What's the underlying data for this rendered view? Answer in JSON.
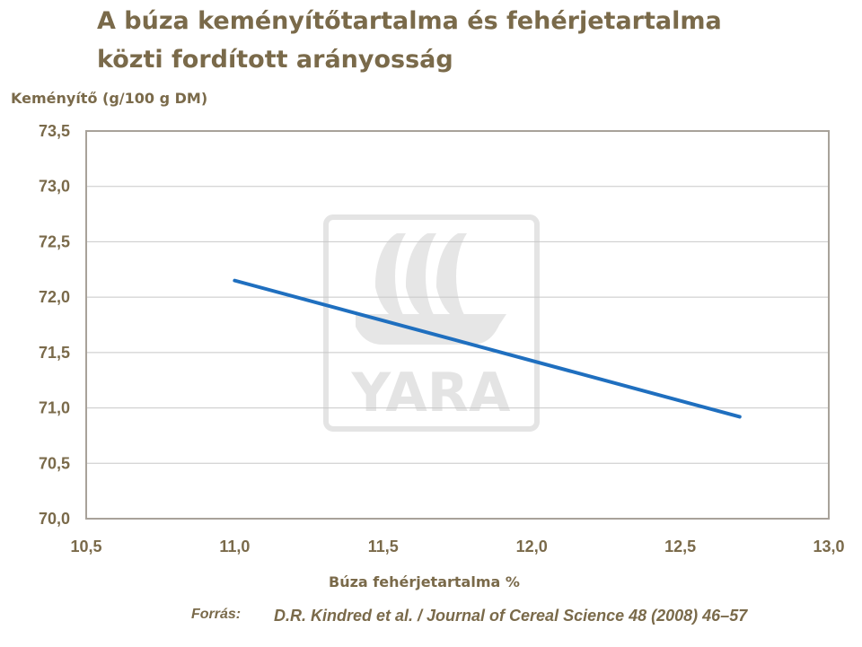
{
  "header": {
    "title_line1": "A búza keményítőtartalma és fehérjetartalma",
    "title_line2": "közti fordított arányosság"
  },
  "source": {
    "label": "Forrás:",
    "text": "D.R. Kindred et al. / Journal of Cereal Science 48 (2008) 46–57"
  },
  "watermark": {
    "text": "YARA",
    "icon": "yara-ship-logo"
  },
  "colors": {
    "line": "#1f6fbf",
    "text": "#7a6a4a",
    "grid": "#c8c8c8",
    "frame": "#a8a29a",
    "watermark": "#e4e4e4"
  },
  "chart_data": {
    "type": "line",
    "title": "A búza keményítőtartalma és fehérjetartalma közti fordított arányosság",
    "xlabel": "Búza fehérjetartalma %",
    "ylabel": "Keményítő (g/100 g DM)",
    "xlim": [
      10.5,
      13.0
    ],
    "ylim": [
      70.0,
      73.5
    ],
    "x_ticks": [
      "10,5",
      "11,0",
      "11,5",
      "12,0",
      "12,5",
      "13,0"
    ],
    "y_ticks": [
      "73,5",
      "73,0",
      "72,5",
      "72,0",
      "71,5",
      "71,0",
      "70,5",
      "70,0"
    ],
    "grid": "horizontal",
    "series": [
      {
        "x": [
          11.0,
          12.7
        ],
        "values": [
          72.15,
          70.92
        ]
      }
    ]
  }
}
